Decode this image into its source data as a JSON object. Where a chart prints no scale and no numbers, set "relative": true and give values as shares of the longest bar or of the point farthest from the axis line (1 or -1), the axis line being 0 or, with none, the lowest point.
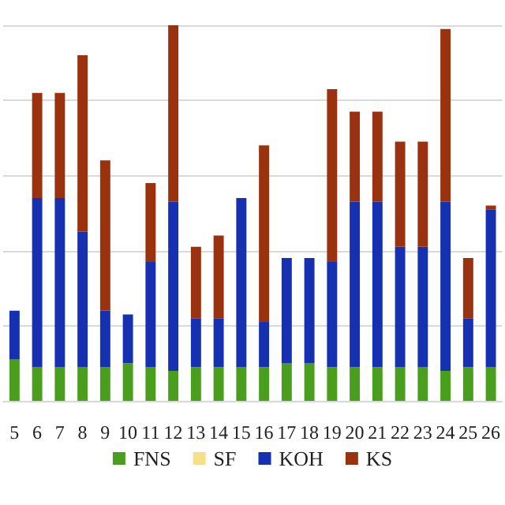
{
  "chart_data": {
    "type": "bar",
    "stacked": true,
    "relative": true,
    "grid": true,
    "legend": "bottom",
    "categories": [
      "5",
      "6",
      "7",
      "8",
      "9",
      "10",
      "11",
      "12",
      "13",
      "14",
      "15",
      "16",
      "17",
      "18",
      "19",
      "20",
      "21",
      "22",
      "23",
      "24",
      "25",
      "26"
    ],
    "series": [
      {
        "name": "FNS",
        "color": "#4a9e1e",
        "values": [
          0.11,
          0.09,
          0.09,
          0.09,
          0.09,
          0.1,
          0.09,
          0.08,
          0.09,
          0.09,
          0.09,
          0.09,
          0.1,
          0.1,
          0.09,
          0.09,
          0.09,
          0.09,
          0.09,
          0.08,
          0.09,
          0.09
        ]
      },
      {
        "name": "SF",
        "color": "#f5e08a",
        "values": [
          0,
          0,
          0,
          0,
          0,
          0,
          0,
          0,
          0,
          0,
          0,
          0,
          0,
          0,
          0,
          0,
          0,
          0,
          0,
          0,
          0,
          0
        ]
      },
      {
        "name": "KOH",
        "color": "#1530b0",
        "values": [
          0.13,
          0.45,
          0.45,
          0.36,
          0.15,
          0.13,
          0.28,
          0.45,
          0.13,
          0.13,
          0.45,
          0.12,
          0.28,
          0.28,
          0.28,
          0.44,
          0.44,
          0.32,
          0.32,
          0.45,
          0.13,
          0.42
        ]
      },
      {
        "name": "KS",
        "color": "#9a3210",
        "values": [
          0,
          0.28,
          0.28,
          0.47,
          0.4,
          0,
          0.21,
          0.47,
          0.19,
          0.22,
          0,
          0.47,
          0,
          0,
          0.46,
          0.24,
          0.24,
          0.28,
          0.28,
          0.46,
          0.16,
          0.01
        ]
      }
    ]
  }
}
